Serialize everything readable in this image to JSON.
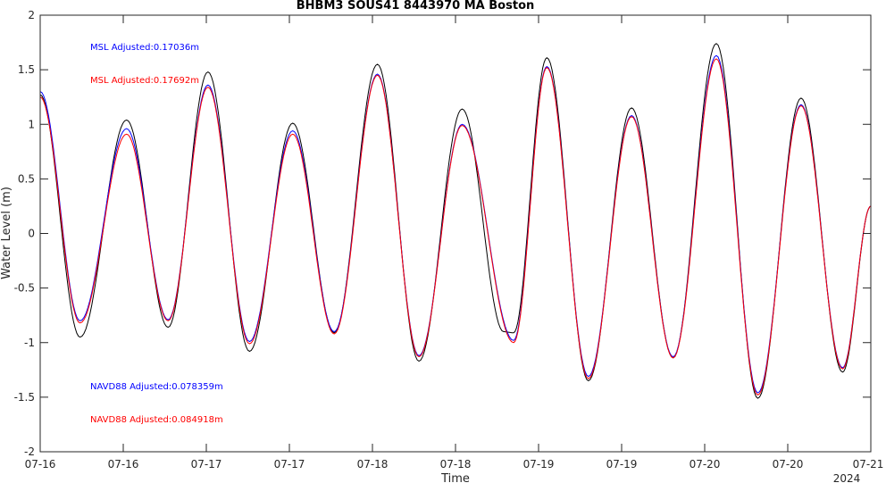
{
  "chart_data": {
    "type": "line",
    "title": "BHBM3 SOUS41 8443970 MA Boston",
    "xlabel": "Time",
    "ylabel": "Water Level (m)",
    "x_year_label": "2024",
    "xlim": [
      0,
      5
    ],
    "ylim": [
      -2,
      2
    ],
    "yticks": [
      -2,
      -1.5,
      -1,
      -0.5,
      0,
      0.5,
      1,
      1.5,
      2
    ],
    "ytick_labels": [
      "-2",
      "-1.5",
      "-1",
      "-0.5",
      "0",
      "0.5",
      "1",
      "1.5",
      "2"
    ],
    "xticks": [
      0,
      0.5,
      1,
      1.5,
      2,
      2.5,
      3,
      3.5,
      4,
      4.5,
      5
    ],
    "xtick_labels": [
      "07-16",
      "07-16",
      "07-17",
      "07-17",
      "07-18",
      "07-18",
      "07-19",
      "07-19",
      "07-20",
      "07-20",
      "07-21"
    ],
    "grid": false,
    "series": [
      {
        "color": "#000000",
        "extrema": [
          [
            0,
            1.27
          ],
          [
            0.24,
            -0.95
          ],
          [
            0.52,
            1.04
          ],
          [
            0.77,
            -0.86
          ],
          [
            1.01,
            1.48
          ],
          [
            1.26,
            -1.08
          ],
          [
            1.52,
            1.01
          ],
          [
            1.77,
            -0.91
          ],
          [
            2.03,
            1.55
          ],
          [
            2.28,
            -1.17
          ],
          [
            2.54,
            1.14
          ],
          [
            2.79,
            -0.9
          ],
          [
            2.85,
            -0.91
          ],
          [
            3.05,
            1.61
          ],
          [
            3.3,
            -1.35
          ],
          [
            3.56,
            1.15
          ],
          [
            3.81,
            -1.14
          ],
          [
            4.07,
            1.74
          ],
          [
            4.32,
            -1.51
          ],
          [
            4.58,
            1.24
          ],
          [
            4.83,
            -1.27
          ],
          [
            5,
            0.25
          ]
        ]
      },
      {
        "color": "#0000ff",
        "extrema": [
          [
            0,
            1.3
          ],
          [
            0.24,
            -0.8
          ],
          [
            0.52,
            0.96
          ],
          [
            0.77,
            -0.79
          ],
          [
            1.01,
            1.36
          ],
          [
            1.26,
            -0.99
          ],
          [
            1.52,
            0.94
          ],
          [
            1.77,
            -0.9
          ],
          [
            2.03,
            1.46
          ],
          [
            2.28,
            -1.12
          ],
          [
            2.54,
            1.0
          ],
          [
            2.85,
            -0.98
          ],
          [
            3.05,
            1.53
          ],
          [
            3.3,
            -1.31
          ],
          [
            3.56,
            1.08
          ],
          [
            3.81,
            -1.13
          ],
          [
            4.07,
            1.63
          ],
          [
            4.32,
            -1.46
          ],
          [
            4.58,
            1.18
          ],
          [
            4.83,
            -1.23
          ],
          [
            5,
            0.25
          ]
        ]
      },
      {
        "color": "#ff0000",
        "extrema": [
          [
            0,
            1.25
          ],
          [
            0.24,
            -0.82
          ],
          [
            0.52,
            0.91
          ],
          [
            0.77,
            -0.8
          ],
          [
            1.01,
            1.34
          ],
          [
            1.26,
            -1.01
          ],
          [
            1.52,
            0.91
          ],
          [
            1.77,
            -0.92
          ],
          [
            2.03,
            1.45
          ],
          [
            2.28,
            -1.13
          ],
          [
            2.54,
            0.99
          ],
          [
            2.85,
            -1.0
          ],
          [
            3.05,
            1.52
          ],
          [
            3.3,
            -1.33
          ],
          [
            3.56,
            1.07
          ],
          [
            3.81,
            -1.14
          ],
          [
            4.07,
            1.6
          ],
          [
            4.32,
            -1.48
          ],
          [
            4.58,
            1.17
          ],
          [
            4.83,
            -1.24
          ],
          [
            5,
            0.25
          ]
        ]
      }
    ],
    "annotations": [
      {
        "text": "MSL Adjusted:0.17036m",
        "color": "#0000ff"
      },
      {
        "text": "MSL Adjusted:0.17692m",
        "color": "#ff0000"
      },
      {
        "text": "NAVD88 Adjusted:0.078359m",
        "color": "#0000ff"
      },
      {
        "text": "NAVD88 Adjusted:0.084918m",
        "color": "#ff0000"
      }
    ]
  }
}
